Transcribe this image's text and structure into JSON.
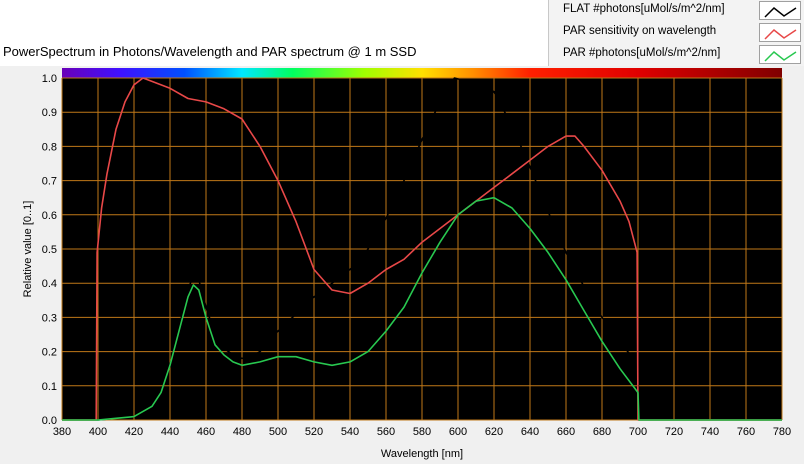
{
  "chart_data": {
    "type": "line",
    "title": "PowerSpectrum in Photons/Wavelength and PAR spectrum @ 1 m SSD",
    "xlabel": "Wavelength [nm]",
    "ylabel": "Relative value [0..1]",
    "xlim": [
      380,
      780
    ],
    "ylim": [
      0.0,
      1.0
    ],
    "x_ticks": [
      "380",
      "400",
      "420",
      "440",
      "460",
      "480",
      "500",
      "520",
      "540",
      "560",
      "580",
      "600",
      "620",
      "640",
      "660",
      "680",
      "700",
      "720",
      "740",
      "760",
      "780"
    ],
    "y_ticks": [
      "0.0",
      "0.1",
      "0.2",
      "0.3",
      "0.4",
      "0.5",
      "0.6",
      "0.7",
      "0.8",
      "0.9",
      "1.0"
    ],
    "grid": true,
    "legend_position": "top-right",
    "colors": {
      "plot_background": "#000000",
      "grid": "#c07818",
      "spectrum_bar": "rainbow"
    },
    "series": [
      {
        "name": "FLAT #photons[uMol/s/m^2/nm]",
        "color": "#000000",
        "points": [
          [
            380,
            0
          ],
          [
            400,
            0
          ],
          [
            410,
            0.005
          ],
          [
            420,
            0.01
          ],
          [
            430,
            0.04
          ],
          [
            435,
            0.08
          ],
          [
            440,
            0.16
          ],
          [
            445,
            0.27
          ],
          [
            450,
            0.38
          ],
          [
            453,
            0.425
          ],
          [
            456,
            0.41
          ],
          [
            460,
            0.33
          ],
          [
            465,
            0.25
          ],
          [
            470,
            0.21
          ],
          [
            475,
            0.19
          ],
          [
            480,
            0.18
          ],
          [
            485,
            0.185
          ],
          [
            490,
            0.2
          ],
          [
            500,
            0.26
          ],
          [
            510,
            0.31
          ],
          [
            520,
            0.36
          ],
          [
            530,
            0.4
          ],
          [
            540,
            0.44
          ],
          [
            550,
            0.5
          ],
          [
            560,
            0.59
          ],
          [
            570,
            0.7
          ],
          [
            580,
            0.82
          ],
          [
            590,
            0.93
          ],
          [
            598,
            1.0
          ],
          [
            605,
            0.99
          ],
          [
            612,
            0.985
          ],
          [
            620,
            0.96
          ],
          [
            630,
            0.86
          ],
          [
            640,
            0.74
          ],
          [
            650,
            0.61
          ],
          [
            660,
            0.49
          ],
          [
            670,
            0.39
          ],
          [
            680,
            0.3
          ],
          [
            690,
            0.23
          ],
          [
            700,
            0.16
          ],
          [
            700.5,
            0
          ],
          [
            780,
            0
          ]
        ]
      },
      {
        "name": "PAR sensitivity on wavelength",
        "color": "#e84848",
        "points": [
          [
            380,
            0
          ],
          [
            399,
            0
          ],
          [
            399.5,
            0.49
          ],
          [
            402,
            0.62
          ],
          [
            405,
            0.72
          ],
          [
            410,
            0.85
          ],
          [
            415,
            0.93
          ],
          [
            420,
            0.98
          ],
          [
            425,
            1.0
          ],
          [
            430,
            0.99
          ],
          [
            440,
            0.97
          ],
          [
            450,
            0.94
          ],
          [
            460,
            0.93
          ],
          [
            470,
            0.91
          ],
          [
            480,
            0.88
          ],
          [
            490,
            0.8
          ],
          [
            500,
            0.7
          ],
          [
            510,
            0.58
          ],
          [
            520,
            0.44
          ],
          [
            530,
            0.38
          ],
          [
            540,
            0.37
          ],
          [
            550,
            0.4
          ],
          [
            560,
            0.44
          ],
          [
            570,
            0.47
          ],
          [
            580,
            0.52
          ],
          [
            590,
            0.56
          ],
          [
            600,
            0.6
          ],
          [
            610,
            0.64
          ],
          [
            620,
            0.68
          ],
          [
            630,
            0.72
          ],
          [
            640,
            0.76
          ],
          [
            650,
            0.8
          ],
          [
            660,
            0.83
          ],
          [
            665,
            0.83
          ],
          [
            670,
            0.8
          ],
          [
            680,
            0.73
          ],
          [
            690,
            0.64
          ],
          [
            695,
            0.58
          ],
          [
            699.5,
            0.49
          ],
          [
            700,
            0
          ],
          [
            780,
            0
          ]
        ]
      },
      {
        "name": "PAR #photons[uMol/s/m^2/nm]",
        "color": "#28c850",
        "points": [
          [
            380,
            0
          ],
          [
            400,
            0
          ],
          [
            410,
            0.005
          ],
          [
            420,
            0.01
          ],
          [
            430,
            0.04
          ],
          [
            435,
            0.08
          ],
          [
            440,
            0.16
          ],
          [
            445,
            0.26
          ],
          [
            450,
            0.36
          ],
          [
            453,
            0.395
          ],
          [
            456,
            0.38
          ],
          [
            460,
            0.3
          ],
          [
            465,
            0.22
          ],
          [
            470,
            0.19
          ],
          [
            475,
            0.17
          ],
          [
            480,
            0.16
          ],
          [
            490,
            0.17
          ],
          [
            500,
            0.185
          ],
          [
            510,
            0.185
          ],
          [
            520,
            0.17
          ],
          [
            530,
            0.16
          ],
          [
            540,
            0.17
          ],
          [
            550,
            0.2
          ],
          [
            560,
            0.26
          ],
          [
            570,
            0.33
          ],
          [
            580,
            0.43
          ],
          [
            590,
            0.52
          ],
          [
            600,
            0.6
          ],
          [
            610,
            0.64
          ],
          [
            620,
            0.65
          ],
          [
            630,
            0.62
          ],
          [
            640,
            0.56
          ],
          [
            650,
            0.49
          ],
          [
            660,
            0.41
          ],
          [
            670,
            0.32
          ],
          [
            680,
            0.23
          ],
          [
            690,
            0.15
          ],
          [
            700,
            0.08
          ],
          [
            700.5,
            0
          ],
          [
            780,
            0
          ]
        ]
      }
    ]
  }
}
